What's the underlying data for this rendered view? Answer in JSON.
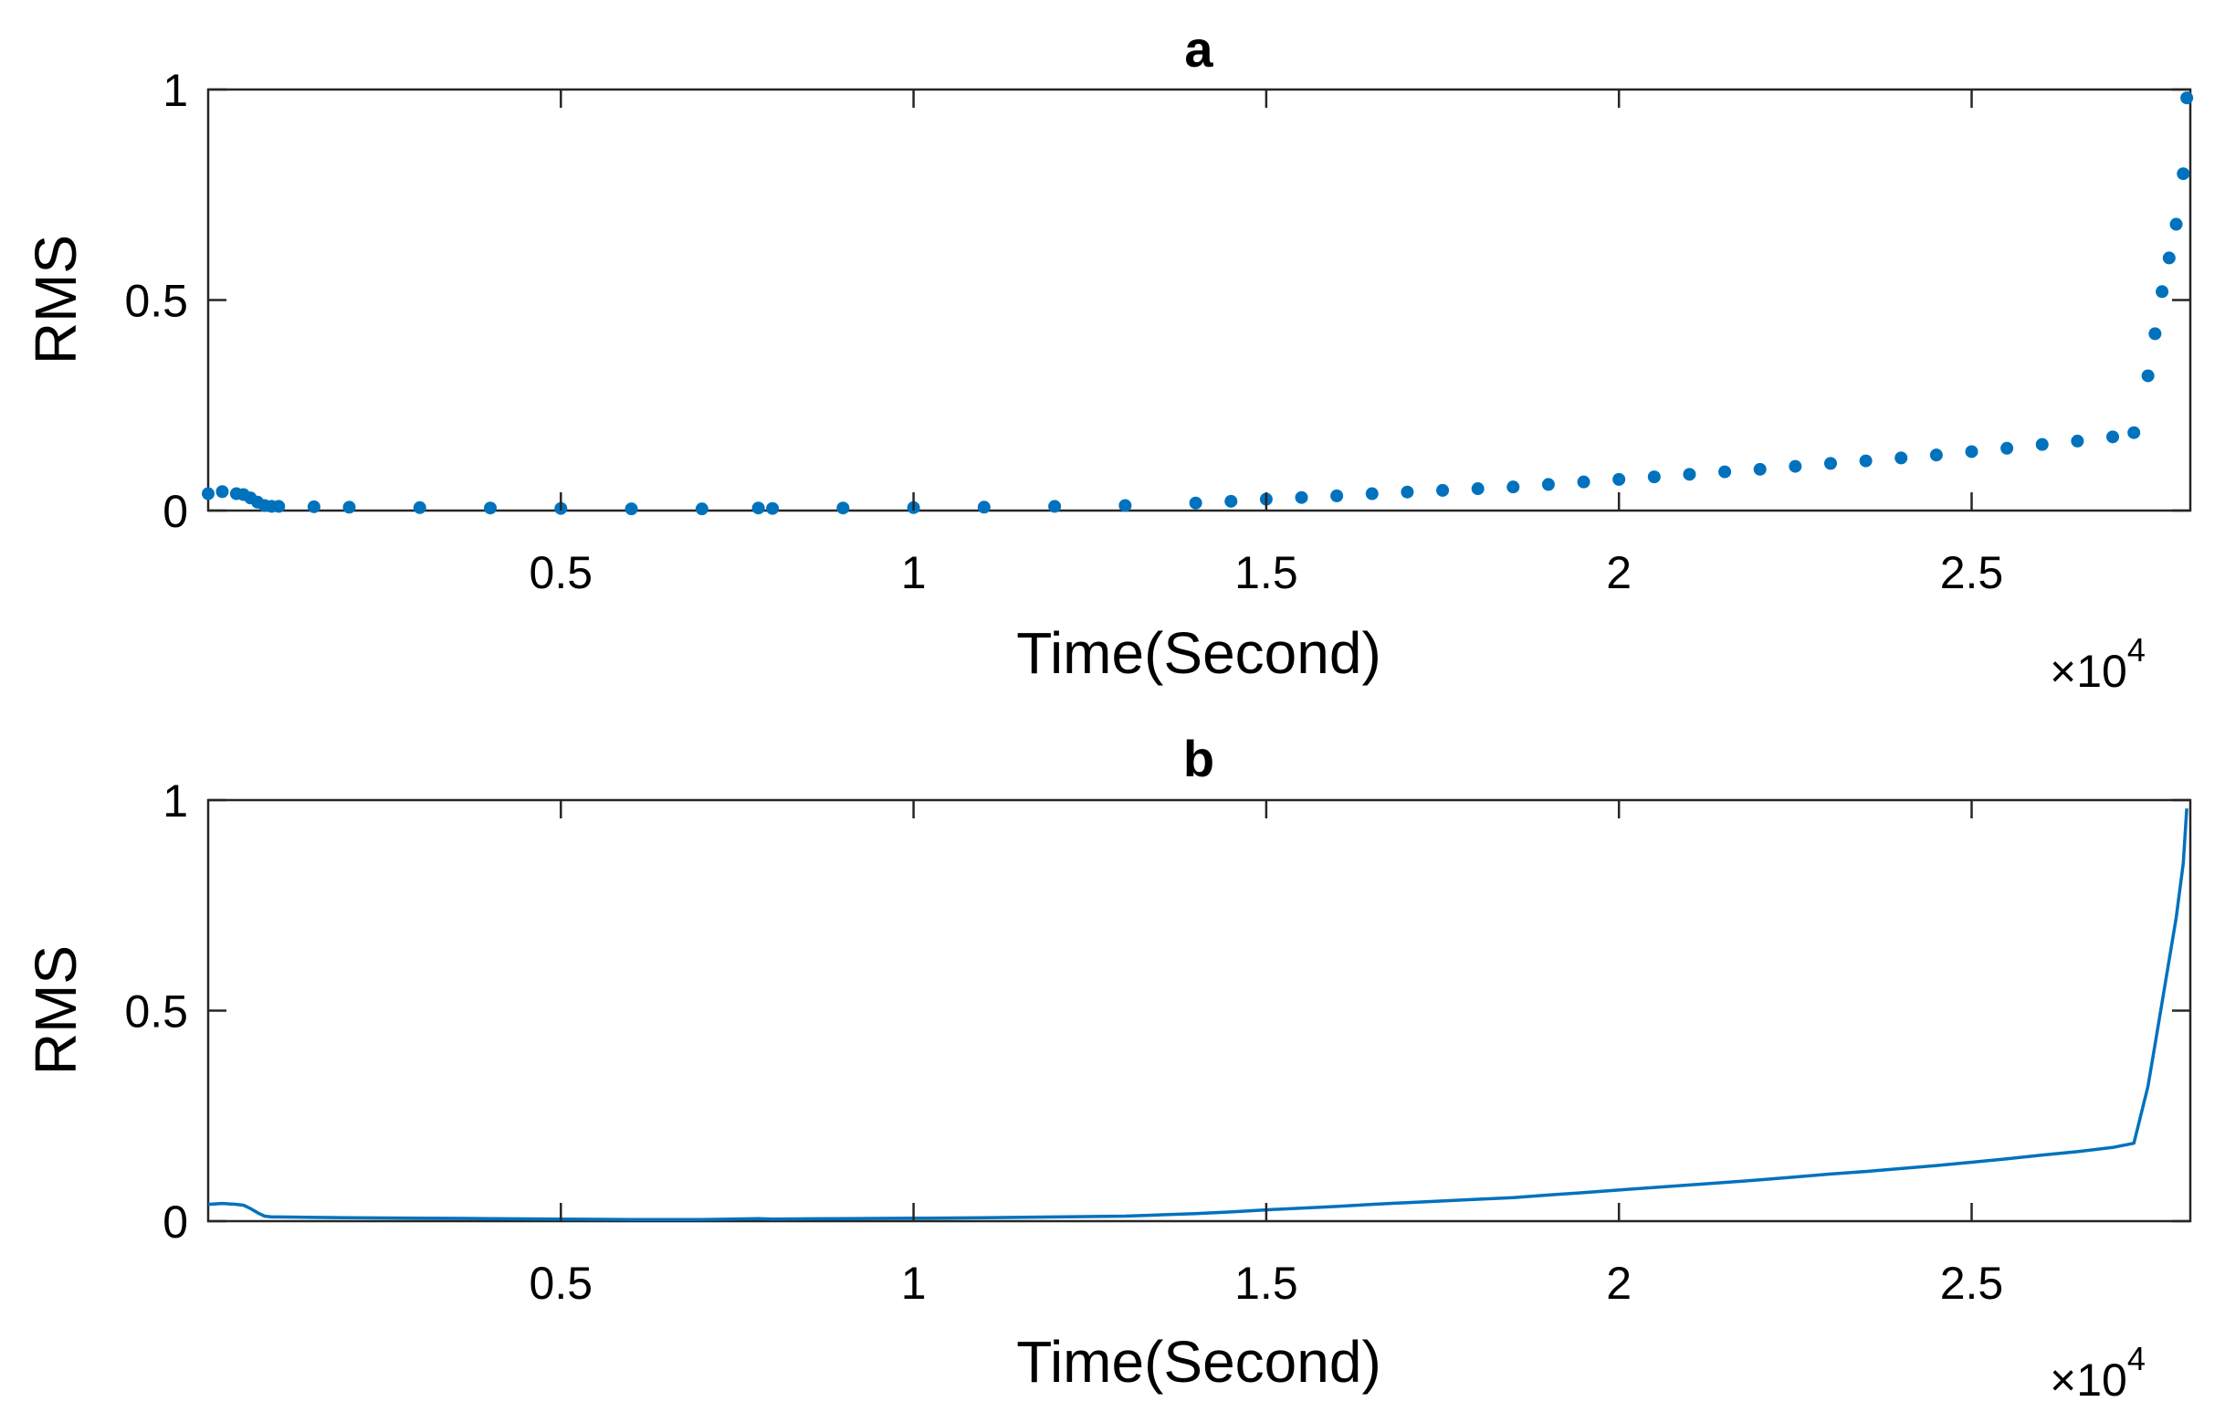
{
  "chart_data": [
    {
      "type": "scatter",
      "title": "a",
      "xlabel": "Time(Second)",
      "ylabel": "RMS",
      "x_multiplier": "×10",
      "x_multiplier_exp": "4",
      "xlim": [
        0,
        28100
      ],
      "ylim": [
        0,
        1
      ],
      "x_ticks": [
        5000,
        10000,
        15000,
        20000,
        25000
      ],
      "x_tick_labels": [
        "0.5",
        "1",
        "1.5",
        "2",
        "2.5"
      ],
      "y_ticks": [
        0,
        0.5,
        1
      ],
      "y_tick_labels": [
        "0",
        "0.5",
        "1"
      ],
      "grid": false,
      "color": "#0072BD",
      "series": [
        {
          "x": [
            0,
            200,
            400,
            500,
            600,
            700,
            800,
            900,
            1000,
            1500,
            2000,
            3000,
            4000,
            5000,
            6000,
            7000,
            7800,
            8000,
            9000,
            10000,
            11000,
            12000,
            13000,
            14000,
            14500,
            15000,
            15500,
            16000,
            16500,
            17000,
            17500,
            18000,
            18500,
            19000,
            19500,
            20000,
            20500,
            21000,
            21500,
            22000,
            22500,
            23000,
            23500,
            24000,
            24500,
            25000,
            25500,
            26000,
            26500,
            27000,
            27300,
            27500,
            27600,
            27700,
            27800,
            27900,
            28000,
            28050
          ],
          "y": [
            0.04,
            0.045,
            0.04,
            0.038,
            0.03,
            0.02,
            0.012,
            0.01,
            0.01,
            0.009,
            0.008,
            0.007,
            0.006,
            0.005,
            0.004,
            0.004,
            0.006,
            0.005,
            0.006,
            0.007,
            0.008,
            0.01,
            0.012,
            0.018,
            0.022,
            0.027,
            0.031,
            0.035,
            0.04,
            0.044,
            0.048,
            0.052,
            0.056,
            0.062,
            0.068,
            0.074,
            0.08,
            0.086,
            0.092,
            0.098,
            0.105,
            0.112,
            0.118,
            0.125,
            0.132,
            0.14,
            0.148,
            0.157,
            0.165,
            0.175,
            0.185,
            0.32,
            0.42,
            0.52,
            0.6,
            0.68,
            0.8,
            0.98
          ]
        }
      ]
    },
    {
      "type": "line",
      "title": "b",
      "xlabel": "Time(Second)",
      "ylabel": "RMS",
      "x_multiplier": "×10",
      "x_multiplier_exp": "4",
      "xlim": [
        0,
        28100
      ],
      "ylim": [
        0,
        1
      ],
      "x_ticks": [
        5000,
        10000,
        15000,
        20000,
        25000
      ],
      "x_tick_labels": [
        "0.5",
        "1",
        "1.5",
        "2",
        "2.5"
      ],
      "y_ticks": [
        0,
        0.5,
        1
      ],
      "y_tick_labels": [
        "0",
        "0.5",
        "1"
      ],
      "grid": false,
      "color": "#0072BD",
      "series": [
        {
          "x": [
            0,
            200,
            400,
            500,
            600,
            700,
            800,
            900,
            1000,
            1500,
            2000,
            3000,
            4000,
            5000,
            6000,
            7000,
            7800,
            8000,
            9000,
            10000,
            11000,
            12000,
            13000,
            14000,
            14500,
            15000,
            15500,
            16000,
            16500,
            17000,
            17500,
            18000,
            18500,
            19000,
            19500,
            20000,
            20500,
            21000,
            21500,
            22000,
            22500,
            23000,
            23500,
            24000,
            24500,
            25000,
            25500,
            26000,
            26500,
            27000,
            27300,
            27500,
            27600,
            27700,
            27800,
            27900,
            28000,
            28050
          ],
          "y": [
            0.04,
            0.042,
            0.04,
            0.038,
            0.03,
            0.02,
            0.012,
            0.01,
            0.01,
            0.009,
            0.008,
            0.007,
            0.006,
            0.005,
            0.004,
            0.004,
            0.006,
            0.005,
            0.006,
            0.007,
            0.008,
            0.01,
            0.012,
            0.018,
            0.022,
            0.027,
            0.031,
            0.035,
            0.04,
            0.044,
            0.048,
            0.052,
            0.056,
            0.062,
            0.068,
            0.074,
            0.08,
            0.086,
            0.092,
            0.098,
            0.105,
            0.112,
            0.118,
            0.125,
            0.132,
            0.14,
            0.148,
            0.157,
            0.165,
            0.175,
            0.185,
            0.32,
            0.42,
            0.52,
            0.62,
            0.72,
            0.85,
            0.98
          ]
        }
      ]
    }
  ]
}
